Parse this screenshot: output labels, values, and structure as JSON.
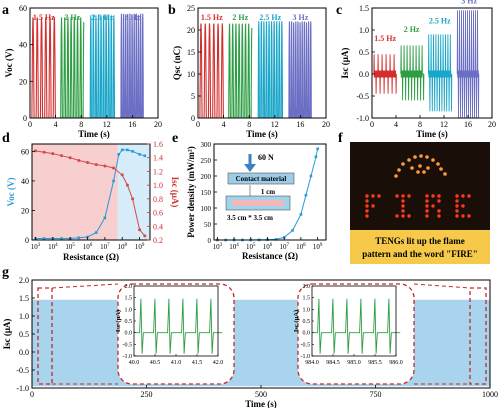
{
  "panels": {
    "a": {
      "letter": "a"
    },
    "b": {
      "letter": "b"
    },
    "c": {
      "letter": "c"
    },
    "d": {
      "letter": "d"
    },
    "e": {
      "letter": "e"
    },
    "f": {
      "letter": "f"
    },
    "g": {
      "letter": "g"
    }
  },
  "chart_data": [
    {
      "id": "a",
      "type": "line",
      "xlabel": "Time (s)",
      "ylabel": "Voc (V)",
      "xlim": [
        0,
        20
      ],
      "ylim": [
        0,
        60
      ],
      "xticks": [
        0,
        4,
        8,
        12,
        16,
        20
      ],
      "yticks": [
        0,
        20,
        40,
        60
      ],
      "series": [
        {
          "name": "1.5 Hz",
          "color": "#d32f2f",
          "x_start": 0.3,
          "x_end": 4.0,
          "frequency_hz": 1.5,
          "amplitude": 55
        },
        {
          "name": "2 Hz",
          "color": "#2e9e44",
          "x_start": 4.8,
          "x_end": 8.4,
          "frequency_hz": 2,
          "amplitude": 55
        },
        {
          "name": "2.5 Hz",
          "color": "#1aa6c8",
          "x_start": 9.4,
          "x_end": 13.2,
          "frequency_hz": 2.5,
          "amplitude": 56
        },
        {
          "name": "3 Hz",
          "color": "#6a6ec4",
          "x_start": 14.2,
          "x_end": 17.8,
          "frequency_hz": 3,
          "amplitude": 57
        }
      ]
    },
    {
      "id": "b",
      "type": "line",
      "xlabel": "Time (s)",
      "ylabel": "Qsc (nC)",
      "xlim": [
        0,
        20
      ],
      "ylim": [
        0,
        25
      ],
      "xticks": [
        0,
        4,
        8,
        12,
        16,
        20
      ],
      "yticks": [
        0,
        5,
        10,
        15,
        20,
        25
      ],
      "series": [
        {
          "name": "1.5 Hz",
          "color": "#d32f2f",
          "x_start": 0.3,
          "x_end": 4.0,
          "frequency_hz": 1.5,
          "amplitude": 21.5
        },
        {
          "name": "2 Hz",
          "color": "#2e9e44",
          "x_start": 4.8,
          "x_end": 8.4,
          "frequency_hz": 2,
          "amplitude": 21.5
        },
        {
          "name": "2.5 Hz",
          "color": "#1aa6c8",
          "x_start": 9.4,
          "x_end": 13.2,
          "frequency_hz": 2.5,
          "amplitude": 22
        },
        {
          "name": "3 Hz",
          "color": "#6a6ec4",
          "x_start": 14.2,
          "x_end": 17.8,
          "frequency_hz": 3,
          "amplitude": 22
        }
      ]
    },
    {
      "id": "c",
      "type": "line",
      "xlabel": "Time (s)",
      "ylabel": "Isc (μA)",
      "xlim": [
        0,
        20
      ],
      "ylim": [
        -1.0,
        1.5
      ],
      "xticks": [
        0,
        4,
        8,
        12,
        16,
        20
      ],
      "yticks": [
        -1.0,
        -0.5,
        0.0,
        0.5,
        1.0,
        1.5
      ],
      "series": [
        {
          "name": "1.5 Hz",
          "color": "#d32f2f",
          "x_start": 0.3,
          "x_end": 4.0,
          "frequency_hz": 1.5,
          "pos_peak": 0.45,
          "neg_peak": -0.45
        },
        {
          "name": "2 Hz",
          "color": "#2e9e44",
          "x_start": 4.8,
          "x_end": 8.4,
          "frequency_hz": 2,
          "pos_peak": 0.65,
          "neg_peak": -0.6
        },
        {
          "name": "2.5 Hz",
          "color": "#1aa6c8",
          "x_start": 9.4,
          "x_end": 13.2,
          "frequency_hz": 2.5,
          "pos_peak": 0.9,
          "neg_peak": -0.85
        },
        {
          "name": "3 Hz",
          "color": "#6a6ec4",
          "x_start": 14.2,
          "x_end": 17.8,
          "frequency_hz": 3,
          "pos_peak": 1.45,
          "neg_peak": -1.0
        }
      ]
    },
    {
      "id": "d",
      "type": "line",
      "xlabel": "Resistance (Ω)",
      "ylabel_left": "Voc (V)",
      "ylabel_right": "Isc (μA)",
      "x_scale": "log",
      "xlim_exp": [
        2.8,
        9.6
      ],
      "xtick_exponents": [
        3,
        4,
        5,
        6,
        7,
        8,
        9
      ],
      "ylim_left": [
        0,
        65
      ],
      "yticks_left": [
        0,
        20,
        40,
        60
      ],
      "ylim_right": [
        0.2,
        1.6
      ],
      "yticks_right": [
        0.2,
        0.4,
        0.6,
        0.8,
        1.0,
        1.2,
        1.4,
        1.6
      ],
      "series": [
        {
          "name": "Voc",
          "axis": "left",
          "color": "#2a9bd6",
          "x_exp": [
            3,
            3.5,
            4,
            4.5,
            5,
            5.5,
            6,
            6.5,
            7,
            7.5,
            7.8,
            8,
            8.3,
            8.6,
            9,
            9.3
          ],
          "y": [
            1,
            1,
            1,
            1,
            1,
            1.5,
            2,
            5,
            15,
            40,
            58,
            61,
            61,
            60,
            58,
            57
          ]
        },
        {
          "name": "Isc",
          "axis": "right",
          "color": "#d24a4a",
          "x_exp": [
            3,
            3.5,
            4,
            4.5,
            5,
            5.5,
            6,
            6.5,
            7,
            7.5,
            8,
            8.3,
            8.6,
            9,
            9.3
          ],
          "y": [
            1.5,
            1.48,
            1.46,
            1.43,
            1.4,
            1.36,
            1.33,
            1.3,
            1.28,
            1.25,
            1.15,
            1.0,
            0.8,
            0.35,
            0.26
          ]
        }
      ]
    },
    {
      "id": "e",
      "type": "line",
      "xlabel": "Resistance (Ω)",
      "ylabel": "Power density (mW/m²)",
      "x_scale": "log",
      "xlim_exp": [
        2.8,
        9.5
      ],
      "xtick_exponents": [
        3,
        4,
        5,
        6,
        7,
        8,
        9
      ],
      "ylim": [
        0,
        300
      ],
      "yticks": [
        0,
        50,
        100,
        150,
        200,
        250,
        300
      ],
      "series": [
        {
          "name": "Power density",
          "color": "#2a9bd6",
          "x_exp": [
            3,
            3.5,
            4,
            4.5,
            5,
            5.5,
            6,
            6.5,
            7,
            7.5,
            8,
            8.3,
            8.6,
            8.9,
            9
          ],
          "y": [
            0,
            0,
            0,
            0,
            0,
            0.5,
            1,
            2,
            8,
            30,
            80,
            140,
            200,
            260,
            285
          ]
        }
      ],
      "inset": {
        "force": "60 N",
        "contact": "Contact material",
        "gap": "1 cm",
        "size": "3.5 cm * 3.5 cm"
      }
    },
    {
      "id": "g",
      "type": "line",
      "xlabel": "Time (s)",
      "ylabel": "Isc (μA)",
      "xlim": [
        0,
        1000
      ],
      "ylim": [
        -1.0,
        2.0
      ],
      "xticks": [
        0,
        250,
        500,
        750,
        1000
      ],
      "yticks": [
        -1.0,
        -0.5,
        0.0,
        0.5,
        1.0,
        1.5,
        2.0
      ],
      "series": [
        {
          "name": "Isc",
          "color": "#a9d4ee",
          "upper": 1.45,
          "lower": -0.95
        }
      ],
      "insets": [
        {
          "xlim": [
            40.0,
            42.0
          ],
          "xticks": [
            "40.0",
            "40.5",
            "41.0",
            "41.5",
            "42.0"
          ],
          "ylim": [
            -1.0,
            2.0
          ],
          "yticks": [
            "-1.0",
            "-0.5",
            "0.0",
            "0.5",
            "1.0",
            "1.5",
            "2.0"
          ],
          "ylabel": "Isc (μA)",
          "peaks": 6
        },
        {
          "xlim": [
            984.0,
            986.0
          ],
          "xticks": [
            "984.0",
            "984.5",
            "985.0",
            "985.5",
            "986.0"
          ],
          "ylim": [
            -1.0,
            2.0
          ],
          "yticks": [
            "-1.0",
            "-0.5",
            "0.0",
            "0.5",
            "1.0",
            "1.5",
            "2.0"
          ],
          "ylabel": "Isc (μA)",
          "peaks": 6
        }
      ]
    }
  ],
  "photo_f": {
    "word": "FIRE",
    "caption_line1": "TENGs lit up the flame",
    "caption_line2": "pattern and the word \"FIRE\"",
    "background": "#1a0f08",
    "led_color": "#ff3a1a",
    "caption_bg": "#f6c94a"
  }
}
